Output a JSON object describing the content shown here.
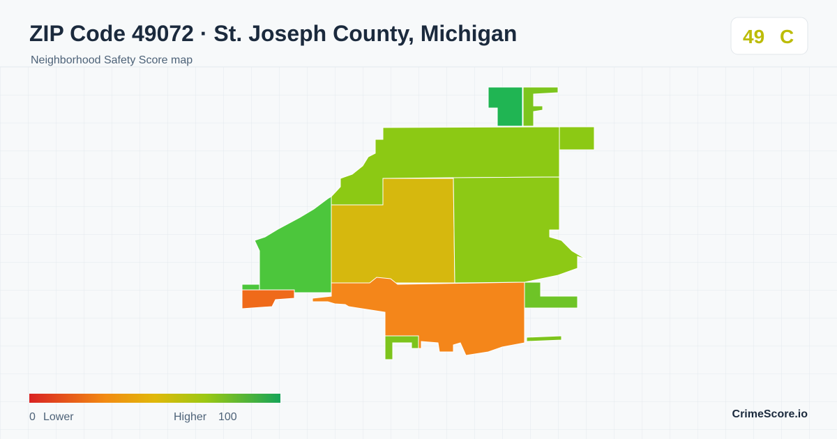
{
  "header": {
    "title": "ZIP Code 49072 · St. Joseph County, Michigan",
    "subtitle": "Neighborhood Safety Score map"
  },
  "score": {
    "value": "49",
    "grade": "C"
  },
  "legend": {
    "min": "0",
    "min_label": "Lower",
    "max_label": "Higher",
    "max": "100"
  },
  "brand": "CrimeScore.io"
}
